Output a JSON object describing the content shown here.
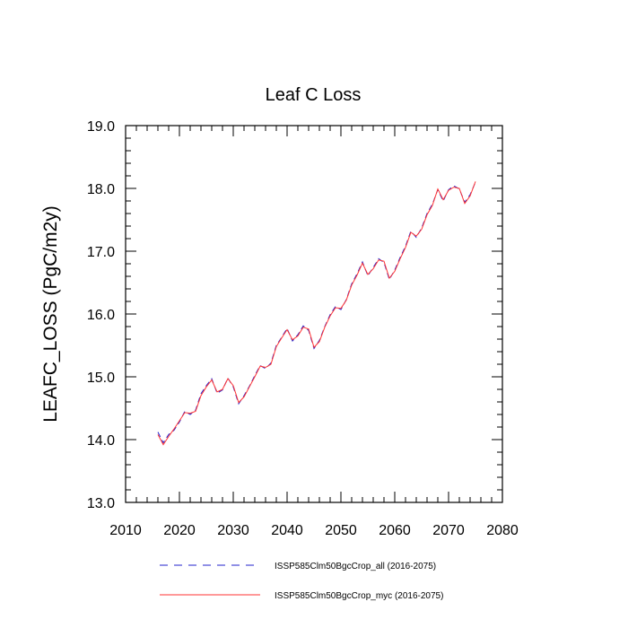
{
  "chart_data": {
    "type": "line",
    "title": "Leaf C Loss",
    "xlabel": "",
    "ylabel": "LEAFC_LOSS  (PgC/m2y)",
    "xlim": [
      2010,
      2080
    ],
    "ylim": [
      13.0,
      19.0
    ],
    "xticks": [
      "2010",
      "2020",
      "2030",
      "2040",
      "2050",
      "2060",
      "2070",
      "2080"
    ],
    "yticks": [
      "13.0",
      "14.0",
      "15.0",
      "16.0",
      "17.0",
      "18.0",
      "19.0"
    ],
    "grid": false,
    "legend_position": "bottom",
    "x": [
      2016,
      2017,
      2018,
      2019,
      2020,
      2021,
      2022,
      2023,
      2024,
      2025,
      2026,
      2027,
      2028,
      2029,
      2030,
      2031,
      2032,
      2033,
      2034,
      2035,
      2036,
      2037,
      2038,
      2039,
      2040,
      2041,
      2042,
      2043,
      2044,
      2045,
      2046,
      2047,
      2048,
      2049,
      2050,
      2051,
      2052,
      2053,
      2054,
      2055,
      2056,
      2057,
      2058,
      2059,
      2060,
      2061,
      2062,
      2063,
      2064,
      2065,
      2066,
      2067,
      2068,
      2069,
      2070,
      2071,
      2072,
      2073,
      2074,
      2075
    ],
    "series": [
      {
        "name": "ISSP585Clm50BgcCrop_all (2016-2075)",
        "color": "#2222cc",
        "dash": "dashed",
        "values": [
          14.12,
          13.95,
          14.08,
          14.15,
          14.28,
          14.45,
          14.4,
          14.47,
          14.73,
          14.86,
          14.97,
          14.74,
          14.79,
          14.98,
          14.84,
          14.57,
          14.7,
          14.85,
          15.02,
          15.18,
          15.13,
          15.22,
          15.5,
          15.63,
          15.77,
          15.57,
          15.67,
          15.81,
          15.74,
          15.45,
          15.58,
          15.8,
          15.99,
          16.12,
          16.07,
          16.23,
          16.48,
          16.64,
          16.83,
          16.61,
          16.74,
          16.88,
          16.82,
          16.55,
          16.7,
          16.9,
          17.08,
          17.32,
          17.22,
          17.37,
          17.6,
          17.75,
          17.98,
          17.8,
          17.98,
          18.04,
          17.99,
          17.78,
          17.9,
          18.1
        ]
      },
      {
        "name": "ISSP585Clm50BgcCrop_myc (2016-2075)",
        "color": "#ff3333",
        "dash": "solid",
        "values": [
          14.08,
          13.92,
          14.05,
          14.17,
          14.3,
          14.43,
          14.42,
          14.45,
          14.7,
          14.84,
          14.95,
          14.76,
          14.8,
          14.97,
          14.86,
          14.59,
          14.68,
          14.84,
          15.0,
          15.17,
          15.15,
          15.2,
          15.48,
          15.62,
          15.75,
          15.59,
          15.65,
          15.79,
          15.76,
          15.47,
          15.56,
          15.79,
          15.97,
          16.1,
          16.09,
          16.22,
          16.46,
          16.62,
          16.81,
          16.63,
          16.72,
          16.86,
          16.84,
          16.57,
          16.68,
          16.88,
          17.06,
          17.3,
          17.24,
          17.35,
          17.58,
          17.73,
          17.99,
          17.82,
          17.97,
          18.02,
          18.0,
          17.76,
          17.88,
          18.11
        ]
      }
    ]
  }
}
